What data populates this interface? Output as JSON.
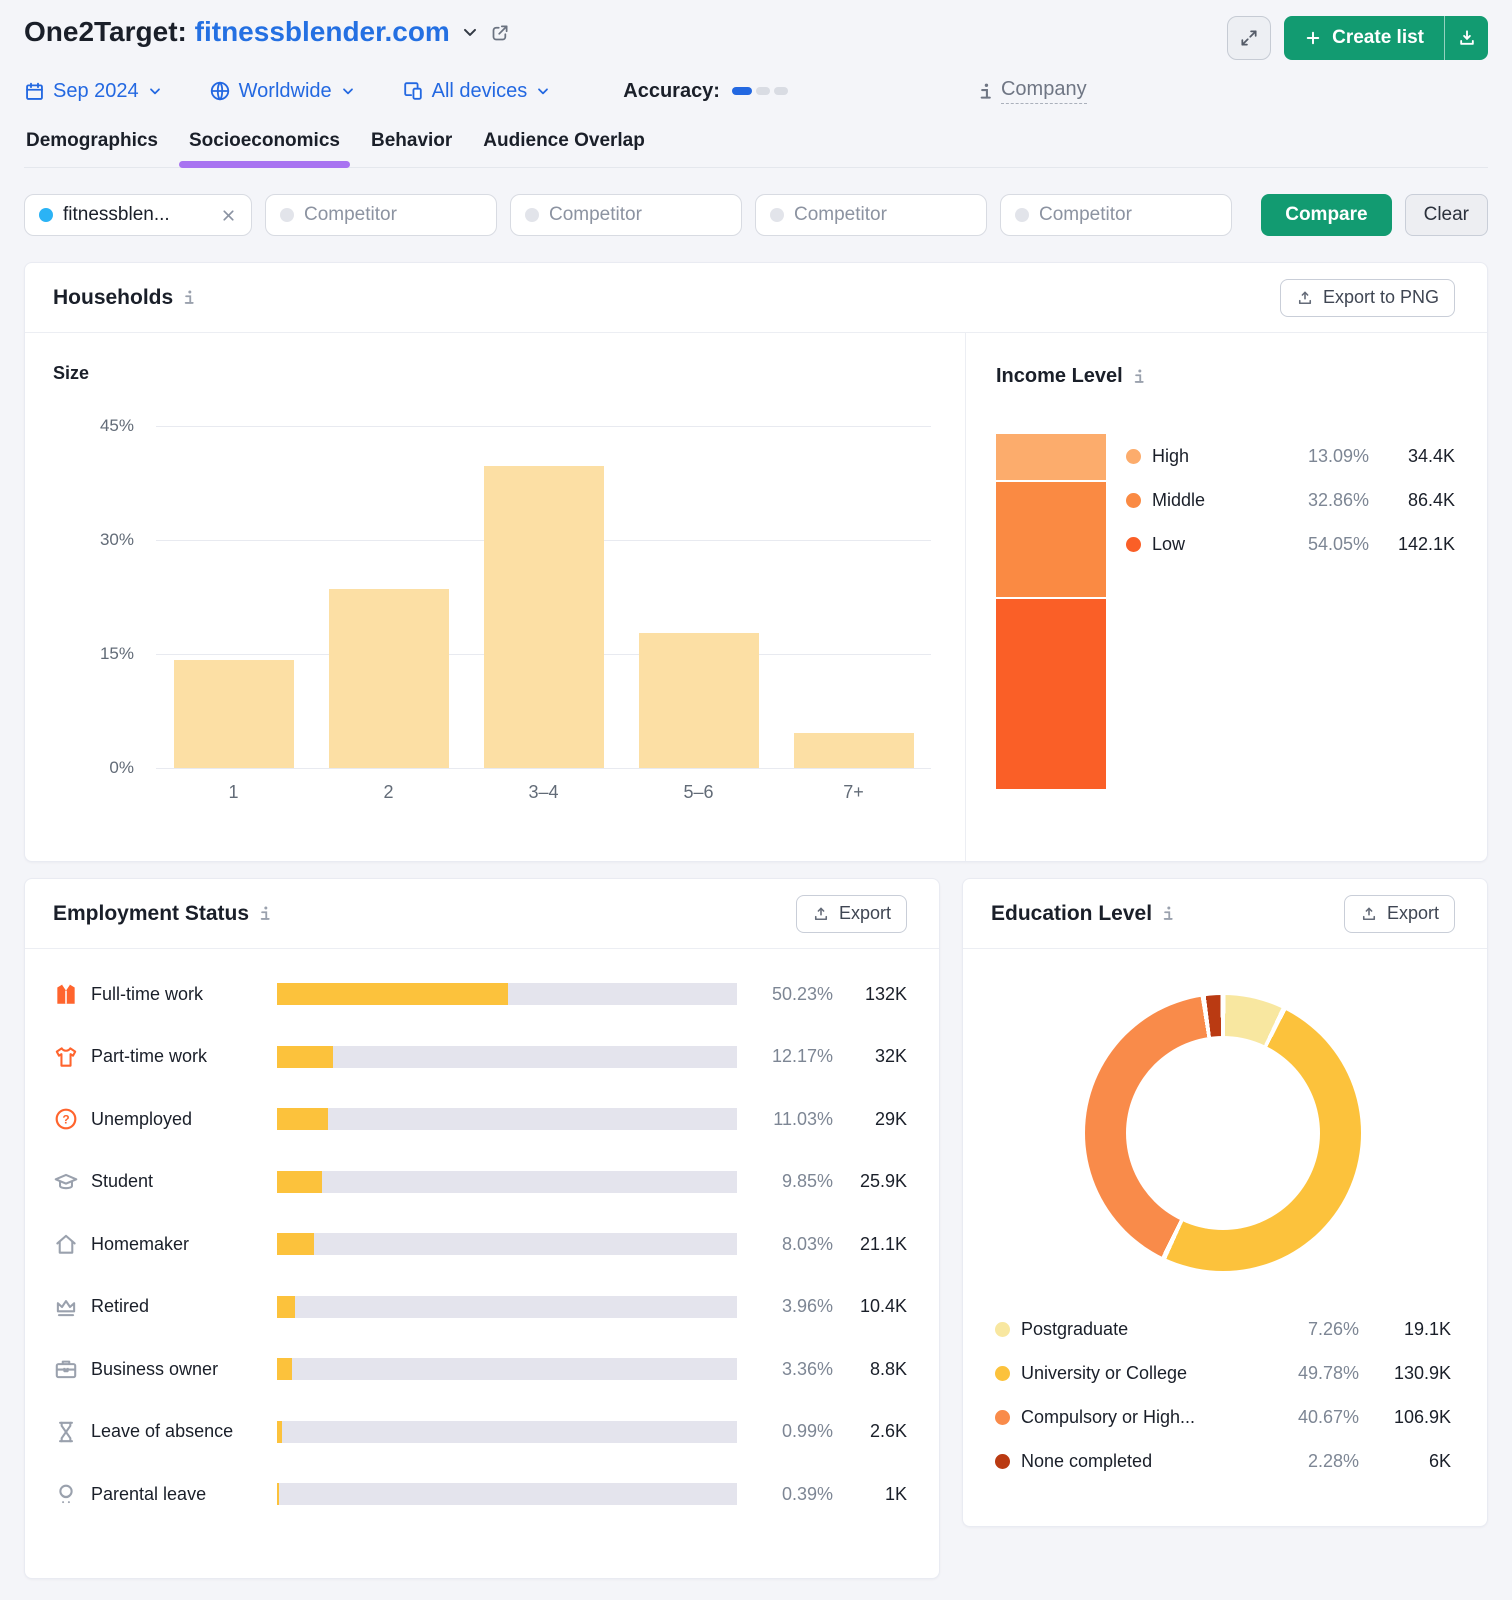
{
  "header": {
    "title_prefix": "One2Target:",
    "domain": "fitnessblender.com",
    "create_list_label": "Create list",
    "filters": {
      "date": "Sep 2024",
      "location": "Worldwide",
      "devices": "All devices"
    },
    "accuracy_label": "Accuracy:",
    "accuracy_level": "1 of 3",
    "company_label": "Company"
  },
  "tabs": [
    {
      "label": "Demographics",
      "active": false
    },
    {
      "label": "Socioeconomics",
      "active": true
    },
    {
      "label": "Behavior",
      "active": false
    },
    {
      "label": "Audience Overlap",
      "active": false
    }
  ],
  "competitors": {
    "selected": "fitnessblen...",
    "selected_dot_color": "#2bb3f5",
    "placeholder": "Competitor",
    "compare_label": "Compare",
    "clear_label": "Clear"
  },
  "households": {
    "title": "Households",
    "export_label": "Export to PNG",
    "size_chart": {
      "label": "Size",
      "type": "bar",
      "categories": [
        "1",
        "2",
        "3–4",
        "5–6",
        "7+"
      ],
      "values": [
        14.2,
        23.6,
        39.8,
        17.8,
        4.6
      ],
      "yticks": [
        "45%",
        "30%",
        "15%",
        "0%"
      ],
      "ymax": 45,
      "bar_color": "#fcdfa4"
    },
    "income_level": {
      "title": "Income Level",
      "type": "stacked-bar",
      "slices": [
        {
          "label": "High",
          "pct": "13.09%",
          "value": "34.4K",
          "color": "#fcac6c"
        },
        {
          "label": "Middle",
          "pct": "32.86%",
          "value": "86.4K",
          "color": "#fa8a43"
        },
        {
          "label": "Low",
          "pct": "54.05%",
          "value": "142.1K",
          "color": "#fa5f27"
        }
      ]
    }
  },
  "employment": {
    "title": "Employment Status",
    "export_label": "Export",
    "type": "hbar",
    "bar_color": "#fcc23c",
    "rows": [
      {
        "icon": "jacket-icon",
        "icon_color": "#ff642d",
        "label": "Full-time work",
        "pct": "50.23%",
        "value": "132K"
      },
      {
        "icon": "tshirt-icon",
        "icon_color": "#ff642d",
        "label": "Part-time work",
        "pct": "12.17%",
        "value": "32K"
      },
      {
        "icon": "question-circle-icon",
        "icon_color": "#ff642d",
        "label": "Unemployed",
        "pct": "11.03%",
        "value": "29K"
      },
      {
        "icon": "graduation-cap-icon",
        "icon_color": "#9aa1ad",
        "label": "Student",
        "pct": "9.85%",
        "value": "25.9K"
      },
      {
        "icon": "home-icon",
        "icon_color": "#9aa1ad",
        "label": "Homemaker",
        "pct": "8.03%",
        "value": "21.1K"
      },
      {
        "icon": "crown-icon",
        "icon_color": "#9aa1ad",
        "label": "Retired",
        "pct": "3.96%",
        "value": "10.4K"
      },
      {
        "icon": "briefcase-icon",
        "icon_color": "#9aa1ad",
        "label": "Business owner",
        "pct": "3.36%",
        "value": "8.8K"
      },
      {
        "icon": "hourglass-icon",
        "icon_color": "#9aa1ad",
        "label": "Leave of absence",
        "pct": "0.99%",
        "value": "2.6K"
      },
      {
        "icon": "pacifier-icon",
        "icon_color": "#9aa1ad",
        "label": "Parental leave",
        "pct": "0.39%",
        "value": "1K"
      }
    ]
  },
  "education": {
    "title": "Education Level",
    "export_label": "Export",
    "type": "donut",
    "slices": [
      {
        "label": "Postgraduate",
        "pct": "7.26%",
        "value": "19.1K",
        "color": "#f8e7a0"
      },
      {
        "label": "University or College",
        "pct": "49.78%",
        "value": "130.9K",
        "color": "#fcc23c"
      },
      {
        "label": "Compulsory or High...",
        "pct": "40.67%",
        "value": "106.9K",
        "color": "#f98b4a"
      },
      {
        "label": "None completed",
        "pct": "2.28%",
        "value": "6K",
        "color": "#ba3a12"
      }
    ]
  }
}
